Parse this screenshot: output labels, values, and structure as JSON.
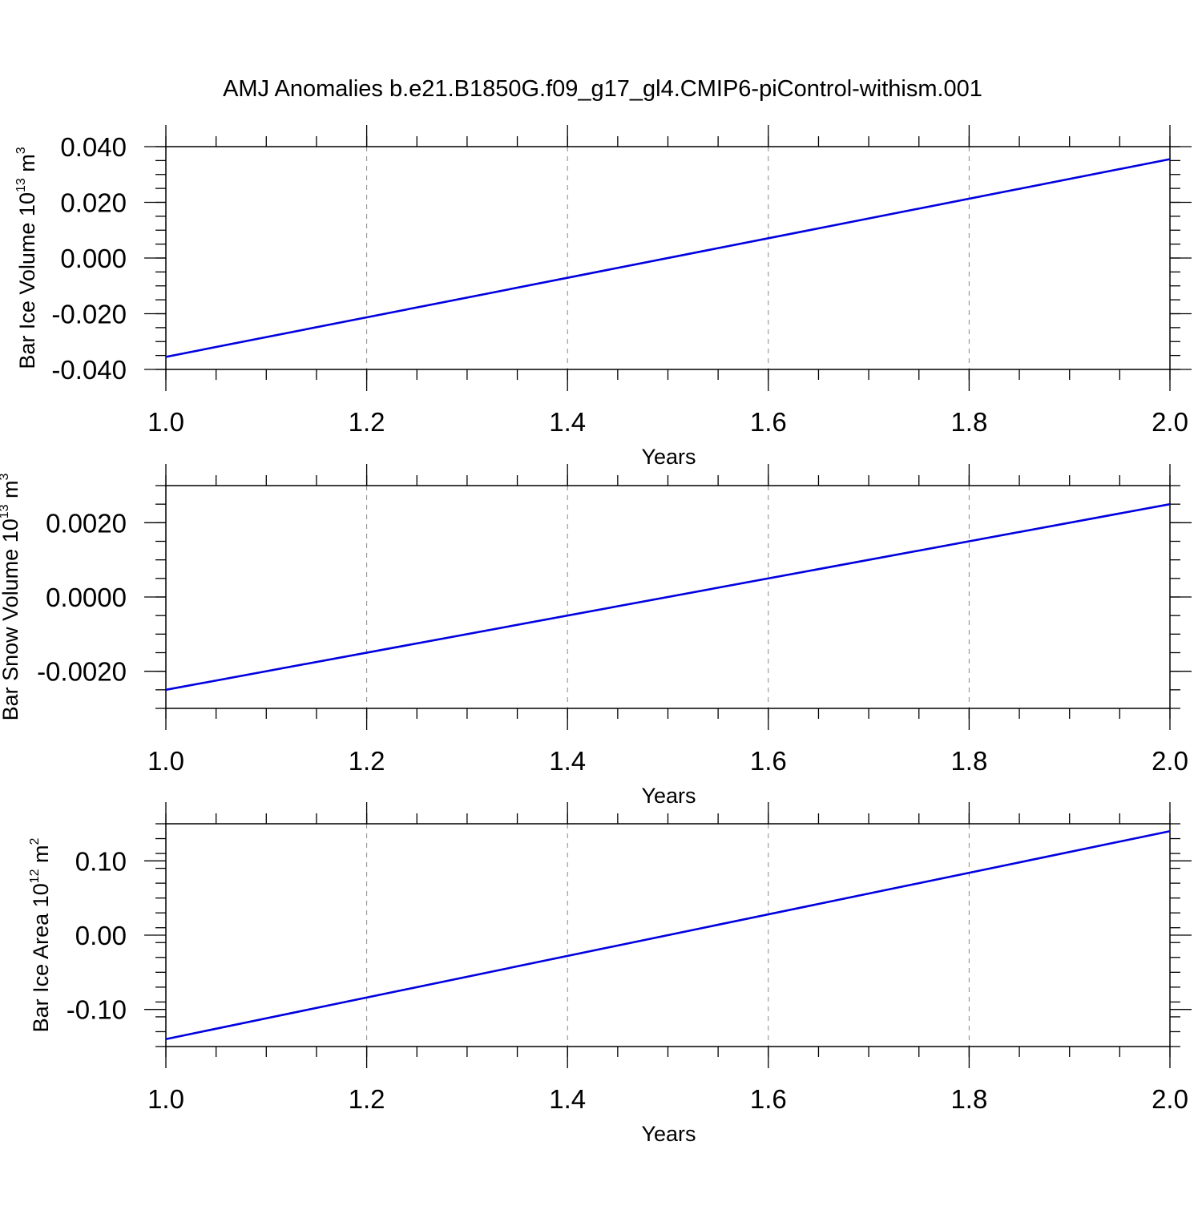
{
  "title": "AMJ Anomalies b.e21.B1850G.f09_g17_gl4.CMIP6-piControl-withism.001",
  "colors": {
    "series": "#0000e0",
    "grid": "#888888",
    "axis": "#000000"
  },
  "chart_data": [
    {
      "type": "line",
      "xlabel": "Years",
      "ylabel": {
        "text": "Bar Ice Volume 10",
        "exponent": "13",
        "unit": " m",
        "unit_exponent": "3"
      },
      "xlim": [
        1.0,
        2.0
      ],
      "ylim": [
        -0.04,
        0.04
      ],
      "x_ticks": [
        "1.0",
        "1.2",
        "1.4",
        "1.6",
        "1.8",
        "2.0"
      ],
      "x_tick_values": [
        1.0,
        1.2,
        1.4,
        1.6,
        1.8,
        2.0
      ],
      "y_ticks": [
        "-0.040",
        "-0.020",
        "0.000",
        "0.020",
        "0.040"
      ],
      "y_tick_values": [
        -0.04,
        -0.02,
        0.0,
        0.02,
        0.04
      ],
      "y_minor_step": 0.005,
      "x_minor_step": 0.05,
      "grid_x": true,
      "series": [
        {
          "x": [
            1.0,
            2.0
          ],
          "y": [
            -0.0355,
            0.0355
          ]
        }
      ]
    },
    {
      "type": "line",
      "xlabel": "Years",
      "ylabel": {
        "text": "Bar Snow Volume 10",
        "exponent": "13",
        "unit": " m",
        "unit_exponent": "3"
      },
      "xlim": [
        1.0,
        2.0
      ],
      "ylim": [
        -0.003,
        0.003
      ],
      "x_ticks": [
        "1.0",
        "1.2",
        "1.4",
        "1.6",
        "1.8",
        "2.0"
      ],
      "x_tick_values": [
        1.0,
        1.2,
        1.4,
        1.6,
        1.8,
        2.0
      ],
      "y_ticks": [
        "-0.0020",
        "0.0000",
        "0.0020"
      ],
      "y_tick_values": [
        -0.002,
        0.0,
        0.002
      ],
      "y_minor_step": 0.0005,
      "x_minor_step": 0.05,
      "grid_x": true,
      "series": [
        {
          "x": [
            1.0,
            2.0
          ],
          "y": [
            -0.0025,
            0.0025
          ]
        }
      ]
    },
    {
      "type": "line",
      "xlabel": "Years",
      "ylabel": {
        "text": "Bar Ice Area 10",
        "exponent": "12",
        "unit": " m",
        "unit_exponent": "2"
      },
      "xlim": [
        1.0,
        2.0
      ],
      "ylim": [
        -0.15,
        0.15
      ],
      "x_ticks": [
        "1.0",
        "1.2",
        "1.4",
        "1.6",
        "1.8",
        "2.0"
      ],
      "x_tick_values": [
        1.0,
        1.2,
        1.4,
        1.6,
        1.8,
        2.0
      ],
      "y_ticks": [
        "-0.10",
        "0.00",
        "0.10"
      ],
      "y_tick_values": [
        -0.1,
        0.0,
        0.1
      ],
      "y_minor_step": 0.02,
      "x_minor_step": 0.05,
      "grid_x": true,
      "series": [
        {
          "x": [
            1.0,
            2.0
          ],
          "y": [
            -0.14,
            0.14
          ]
        }
      ]
    }
  ]
}
